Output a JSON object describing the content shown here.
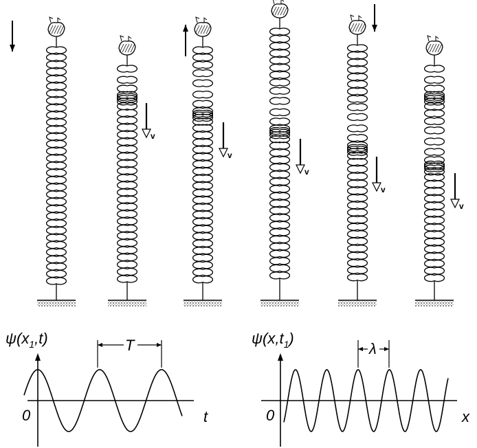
{
  "springs": {
    "velocity_labels": [
      "v",
      "v",
      "v",
      "v",
      "v"
    ]
  },
  "graphs": [
    {
      "y_label": {
        "main": "ψ(x",
        "sub": "1",
        "rest": ",t)"
      },
      "period_label": "T",
      "x_label": "t",
      "origin": "0"
    },
    {
      "y_label": {
        "main": "ψ(x,t",
        "sub": "1",
        "rest": ")"
      },
      "period_label": "λ",
      "x_label": "x",
      "origin": "0"
    }
  ]
}
